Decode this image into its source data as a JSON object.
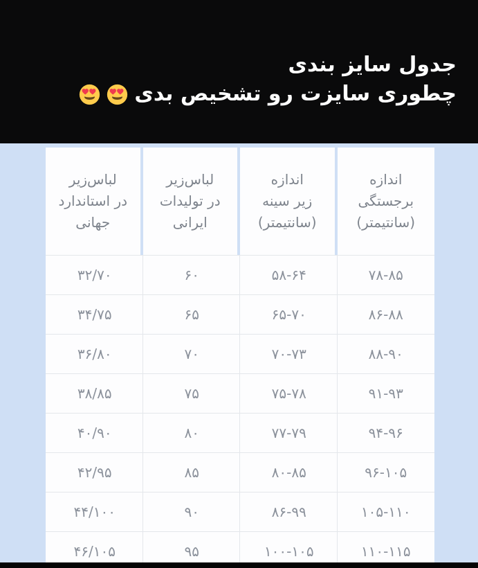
{
  "header": {
    "line1": "جدول سایز بندی",
    "line2": "چطوری سایزت رو تشخیص بدی",
    "emojis": [
      "heart-eyes",
      "heart-eyes"
    ]
  },
  "chart_data": {
    "type": "table",
    "title": "جدول سایز بندی",
    "subtitle": "چطوری سایزت رو تشخیص بدی",
    "columns": [
      {
        "label": "اندازه برجستگی (سانتیمتر)",
        "lines": [
          "اندازه",
          "برجستگی",
          "(سانتیمتر)"
        ]
      },
      {
        "label": "اندازه زیر سینه (سانتیمتر)",
        "lines": [
          "اندازه",
          "زیر سینه",
          "(سانتیمتر)"
        ]
      },
      {
        "label": "لباس‌زیر در تولیدات ایرانی",
        "lines": [
          "لباس‌زیر",
          "در تولیدات",
          "ایرانی"
        ]
      },
      {
        "label": "لباس‌زیر در استاندارد جهانی",
        "lines": [
          "لباس‌زیر",
          "در استاندارد",
          "جهانی"
        ]
      }
    ],
    "rows": [
      [
        "۷۸-۸۵",
        "۵۸-۶۴",
        "۶۰",
        "۳۲/۷۰"
      ],
      [
        "۸۶-۸۸",
        "۶۵-۷۰",
        "۶۵",
        "۳۴/۷۵"
      ],
      [
        "۸۸-۹۰",
        "۷۰-۷۳",
        "۷۰",
        "۳۶/۸۰"
      ],
      [
        "۹۱-۹۳",
        "۷۵-۷۸",
        "۷۵",
        "۳۸/۸۵"
      ],
      [
        "۹۴-۹۶",
        "۷۷-۷۹",
        "۸۰",
        "۴۰/۹۰"
      ],
      [
        "۹۶-۱۰۵",
        "۸۰-۸۵",
        "۸۵",
        "۴۲/۹۵"
      ],
      [
        "۱۰۵-۱۱۰",
        "۸۶-۹۹",
        "۹۰",
        "۴۴/۱۰۰"
      ],
      [
        "۱۱۰-۱۱۵",
        "۱۰۰-۱۰۵",
        "۹۵",
        "۴۶/۱۰۵"
      ]
    ],
    "layout_hints": {
      "direction": "rtl",
      "first_column_position": "rightmost",
      "grid": "on"
    }
  },
  "colors": {
    "background_blue": "#cfdff5",
    "banner_black": "#0a0a0b",
    "cell_white": "#fdfdfe",
    "data_text_gray": "#8b919b",
    "header_text_gray": "#7d838c",
    "grid_line_gray": "#e4e7eb",
    "title_white": "#ffffff",
    "emoji_face_yellow": "#ffcb4c",
    "emoji_heart_red": "#ef3b4f"
  }
}
